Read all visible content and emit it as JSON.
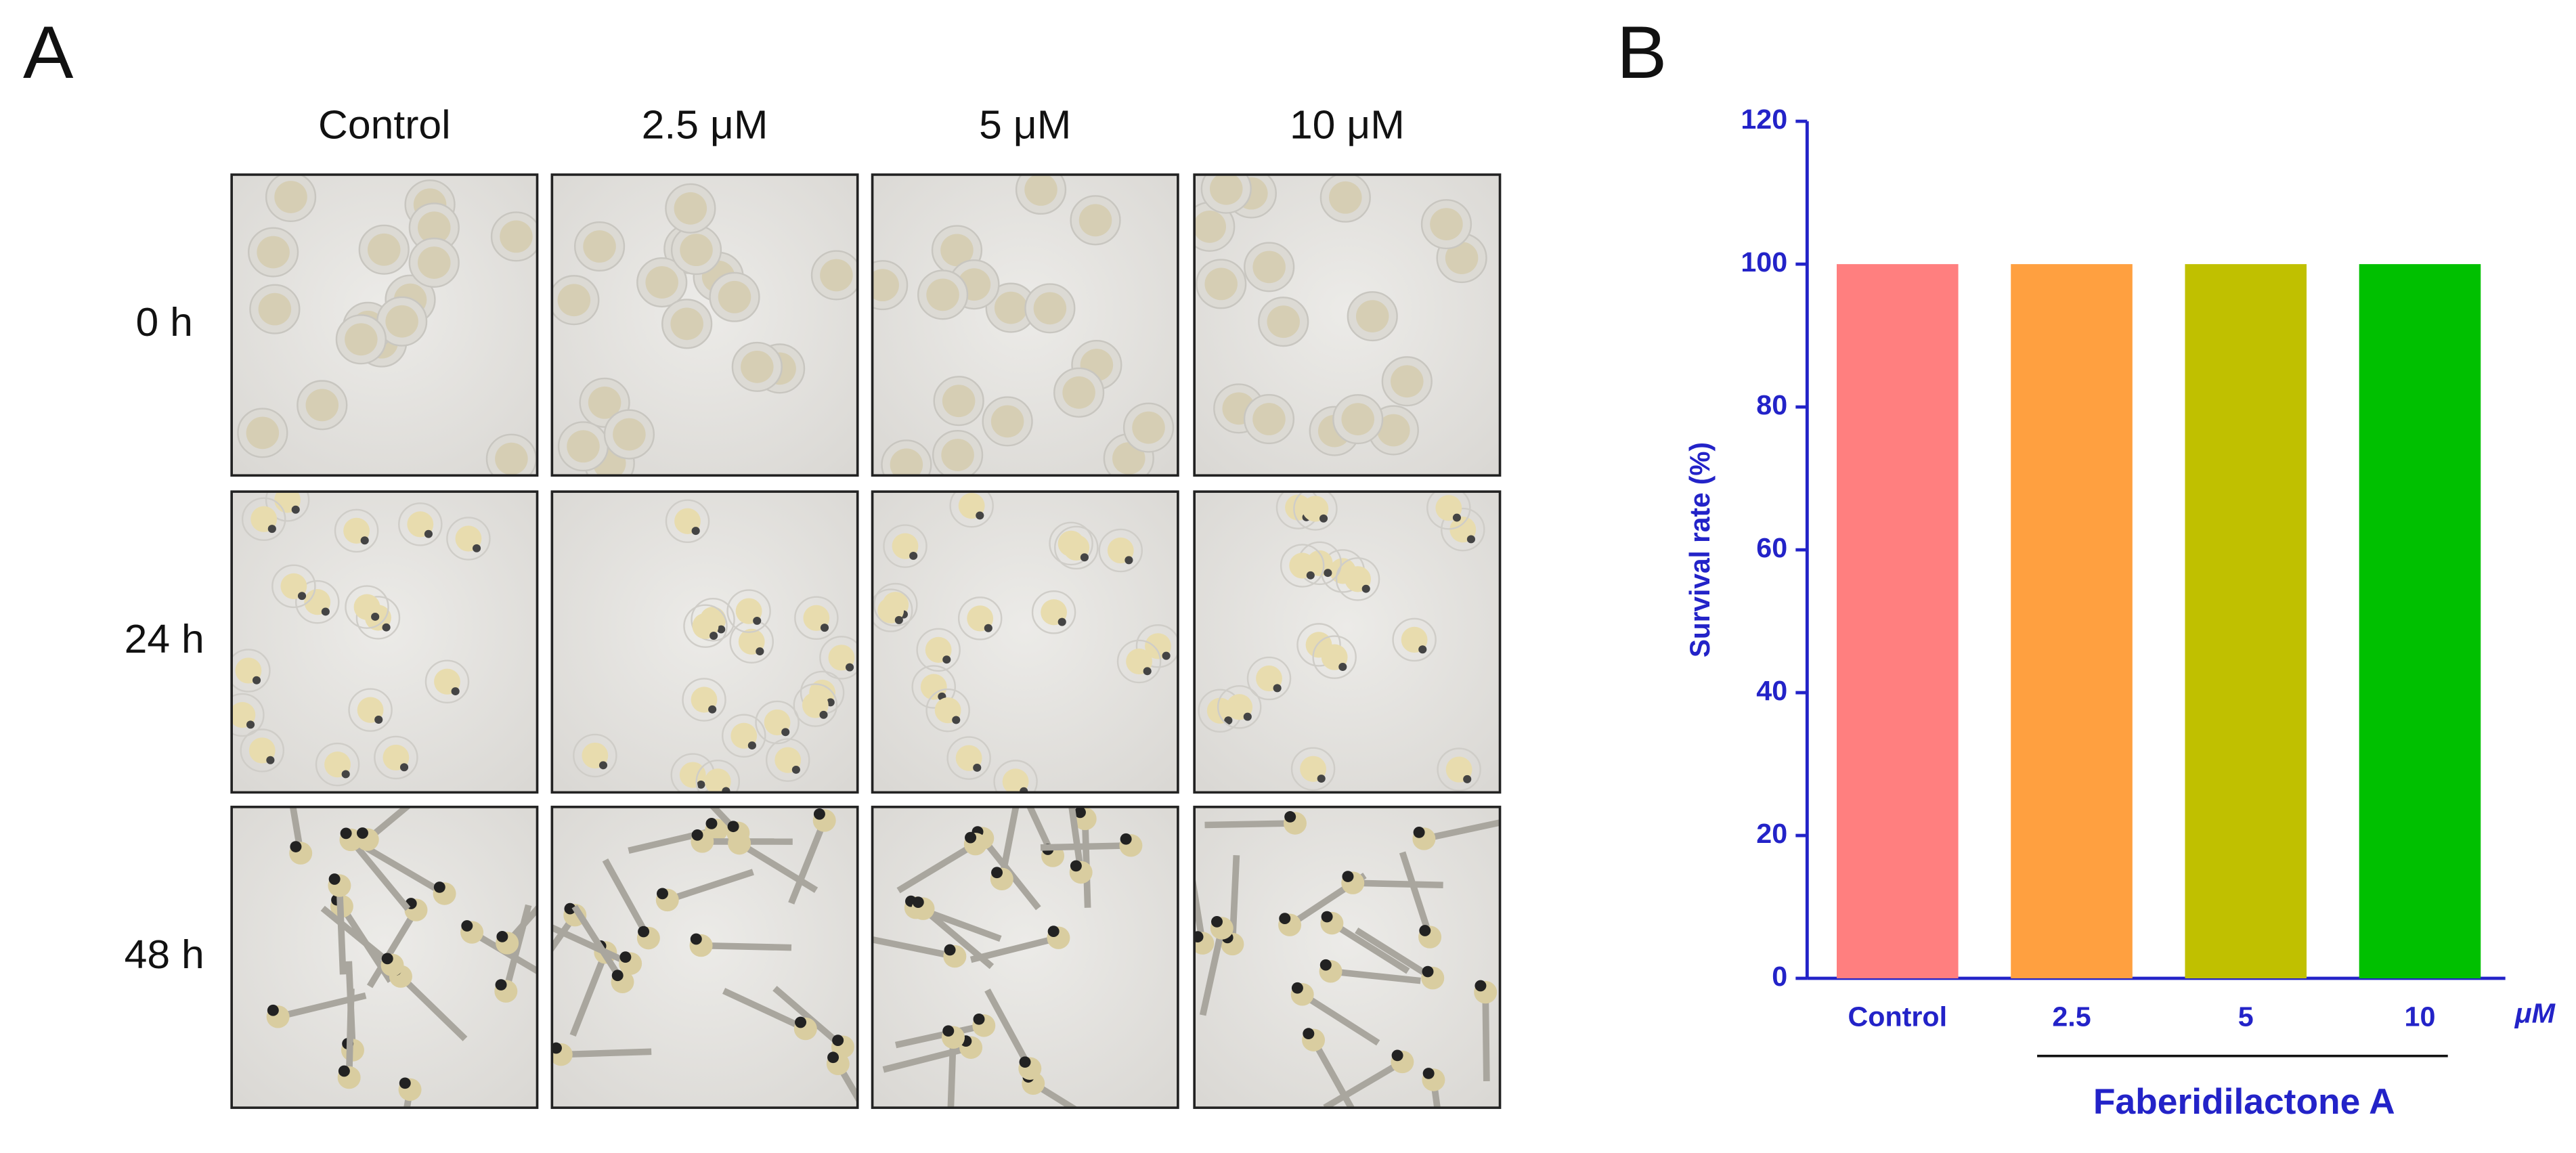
{
  "panel_a": {
    "label": "A",
    "columns": [
      "Control",
      "2.5 μM",
      "5 μM",
      "10 μM"
    ],
    "rows": [
      "0 h",
      "24 h",
      "48 h"
    ]
  },
  "chart_data": {
    "type": "bar",
    "panel_label": "B",
    "y_label": "Survival rate (%)",
    "categories": [
      "Control",
      "2.5",
      "5",
      "10"
    ],
    "values": [
      100,
      100,
      100,
      100
    ],
    "colors": [
      "#ff7f7f",
      "#ffa040",
      "#c0c000",
      "#00c000"
    ],
    "ylim": [
      0,
      120
    ],
    "yticks": [
      0,
      20,
      40,
      60,
      80,
      100,
      120
    ],
    "unit_label": "μM",
    "group_label": "Faberidilactone A",
    "axis_color": "#2323c8"
  }
}
